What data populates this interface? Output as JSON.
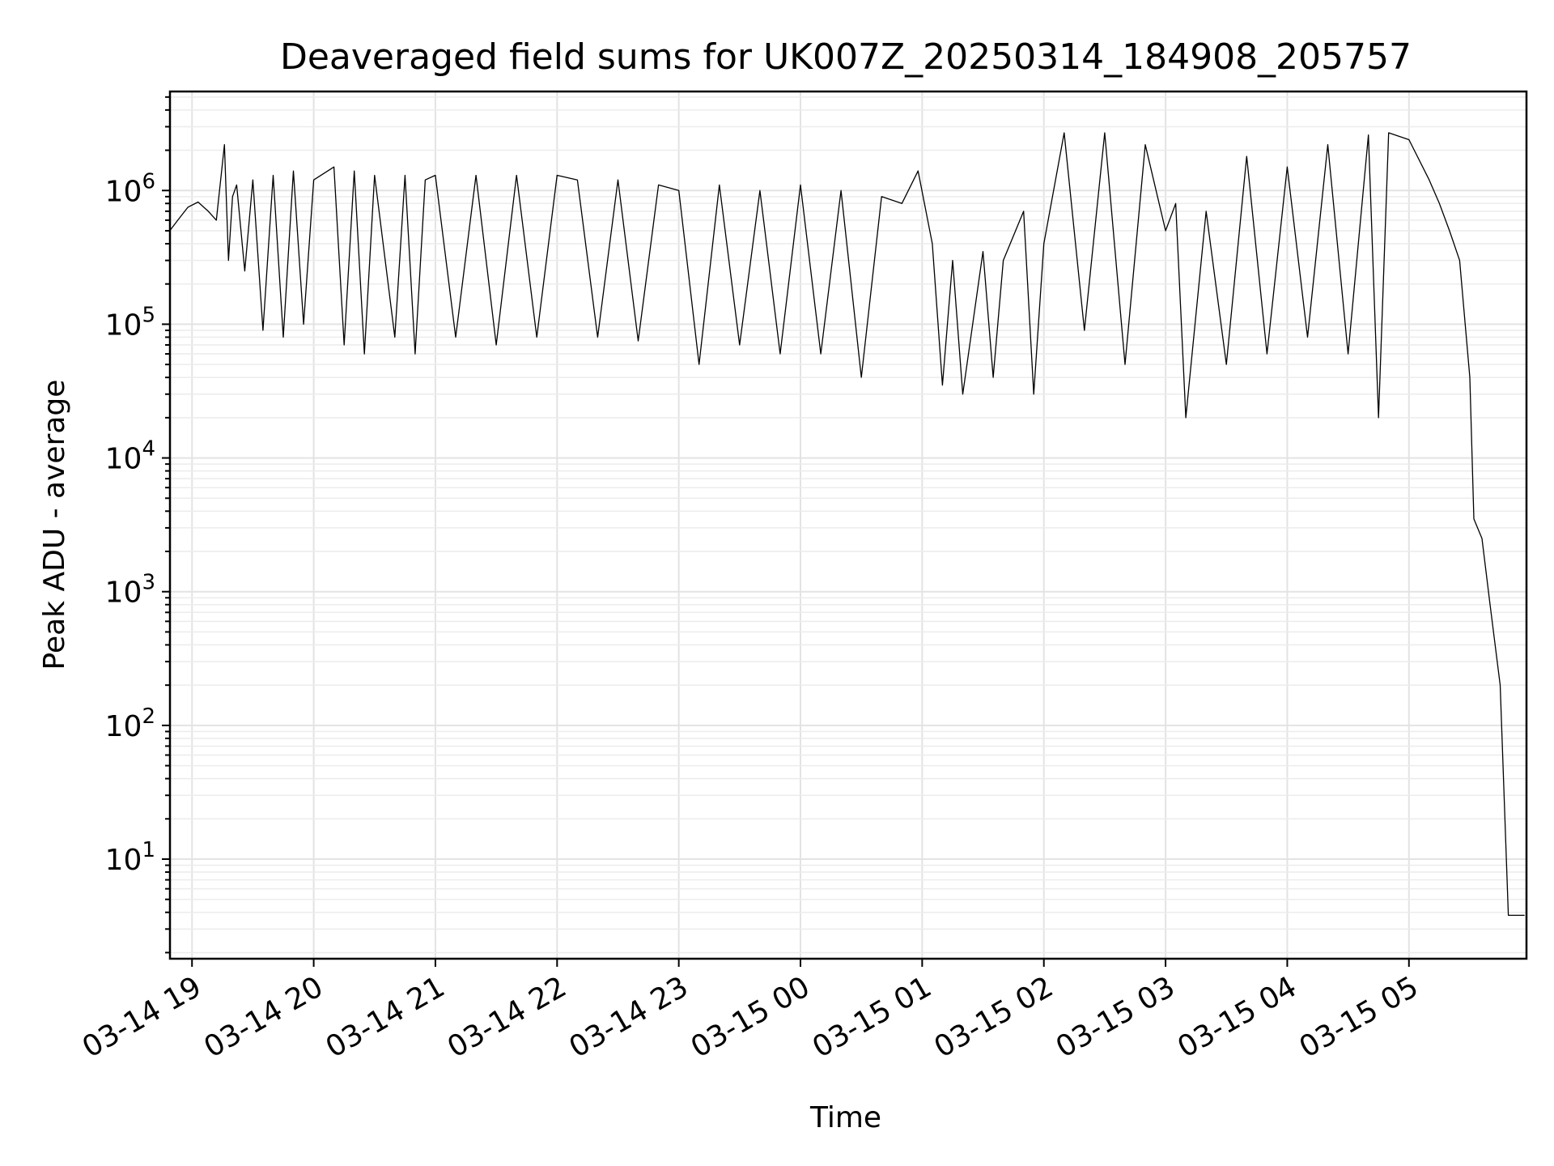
{
  "chart_data": {
    "type": "line",
    "title": "Deaveraged field sums for UK007Z_20250314_184908_205757",
    "xlabel": "Time",
    "ylabel": "Peak ADU - average",
    "yscale": "log",
    "ylim": [
      1.8,
      5500000
    ],
    "xlim": [
      "2025-03-14 18:49:08",
      "2025-03-15 05:57:57"
    ],
    "x_ticks": [
      "03-14 19",
      "03-14 20",
      "03-14 21",
      "03-14 22",
      "03-14 23",
      "03-15 00",
      "03-15 01",
      "03-15 02",
      "03-15 03",
      "03-15 04",
      "03-15 05"
    ],
    "x_tick_times": [
      "2025-03-14 19:00",
      "2025-03-14 20:00",
      "2025-03-14 21:00",
      "2025-03-14 22:00",
      "2025-03-14 23:00",
      "2025-03-15 00:00",
      "2025-03-15 01:00",
      "2025-03-15 02:00",
      "2025-03-15 03:00",
      "2025-03-15 04:00",
      "2025-03-15 05:00"
    ],
    "y_ticks": [
      {
        "value": 10,
        "base": "10",
        "exp": "1"
      },
      {
        "value": 100,
        "base": "10",
        "exp": "2"
      },
      {
        "value": 1000,
        "base": "10",
        "exp": "3"
      },
      {
        "value": 10000,
        "base": "10",
        "exp": "4"
      },
      {
        "value": 100000,
        "base": "10",
        "exp": "5"
      },
      {
        "value": 1000000,
        "base": "10",
        "exp": "6"
      }
    ],
    "grid": true,
    "line_color": "#000000",
    "series": [
      {
        "x": [
          "2025-03-14 18:49",
          "2025-03-14 18:53",
          "2025-03-14 18:58",
          "2025-03-14 19:03",
          "2025-03-14 19:08",
          "2025-03-14 19:12",
          "2025-03-14 19:16",
          "2025-03-14 19:18",
          "2025-03-14 19:20",
          "2025-03-14 19:22",
          "2025-03-14 19:26",
          "2025-03-14 19:30",
          "2025-03-14 19:35",
          "2025-03-14 19:40",
          "2025-03-14 19:45",
          "2025-03-14 19:50",
          "2025-03-14 19:55",
          "2025-03-14 20:00",
          "2025-03-14 20:10",
          "2025-03-14 20:15",
          "2025-03-14 20:20",
          "2025-03-14 20:25",
          "2025-03-14 20:30",
          "2025-03-14 20:40",
          "2025-03-14 20:45",
          "2025-03-14 20:50",
          "2025-03-14 20:55",
          "2025-03-14 21:00",
          "2025-03-14 21:10",
          "2025-03-14 21:20",
          "2025-03-14 21:30",
          "2025-03-14 21:40",
          "2025-03-14 21:50",
          "2025-03-14 22:00",
          "2025-03-14 22:10",
          "2025-03-14 22:20",
          "2025-03-14 22:30",
          "2025-03-14 22:40",
          "2025-03-14 22:50",
          "2025-03-14 23:00",
          "2025-03-14 23:10",
          "2025-03-14 23:20",
          "2025-03-14 23:30",
          "2025-03-14 23:40",
          "2025-03-14 23:50",
          "2025-03-15 00:00",
          "2025-03-15 00:10",
          "2025-03-15 00:20",
          "2025-03-15 00:30",
          "2025-03-15 00:40",
          "2025-03-15 00:50",
          "2025-03-15 00:58",
          "2025-03-15 01:05",
          "2025-03-15 01:10",
          "2025-03-15 01:15",
          "2025-03-15 01:20",
          "2025-03-15 01:30",
          "2025-03-15 01:35",
          "2025-03-15 01:40",
          "2025-03-15 01:50",
          "2025-03-15 01:55",
          "2025-03-15 02:00",
          "2025-03-15 02:10",
          "2025-03-15 02:20",
          "2025-03-15 02:30",
          "2025-03-15 02:40",
          "2025-03-15 02:50",
          "2025-03-15 03:00",
          "2025-03-15 03:05",
          "2025-03-15 03:10",
          "2025-03-15 03:20",
          "2025-03-15 03:30",
          "2025-03-15 03:40",
          "2025-03-15 03:50",
          "2025-03-15 04:00",
          "2025-03-15 04:10",
          "2025-03-15 04:20",
          "2025-03-15 04:30",
          "2025-03-15 04:40",
          "2025-03-15 04:45",
          "2025-03-15 04:50",
          "2025-03-15 05:00",
          "2025-03-15 05:10",
          "2025-03-15 05:15",
          "2025-03-15 05:20",
          "2025-03-15 05:25",
          "2025-03-15 05:30",
          "2025-03-15 05:32",
          "2025-03-15 05:36",
          "2025-03-15 05:40",
          "2025-03-15 05:45",
          "2025-03-15 05:49",
          "2025-03-15 05:52",
          "2025-03-15 05:57"
        ],
        "y": [
          500000,
          600000,
          750000,
          820000,
          700000,
          600000,
          2200000,
          300000,
          900000,
          1100000,
          250000,
          1200000,
          90000,
          1300000,
          80000,
          1400000,
          100000,
          1200000,
          1500000,
          70000,
          1400000,
          60000,
          1300000,
          80000,
          1300000,
          60000,
          1200000,
          1300000,
          80000,
          1300000,
          70000,
          1300000,
          80000,
          1300000,
          1200000,
          80000,
          1200000,
          75000,
          1100000,
          1000000,
          50000,
          1100000,
          70000,
          1000000,
          60000,
          1100000,
          60000,
          1000000,
          40000,
          900000,
          800000,
          1400000,
          400000,
          35000,
          300000,
          30000,
          350000,
          40000,
          300000,
          700000,
          30000,
          400000,
          2700000,
          90000,
          2700000,
          50000,
          2200000,
          500000,
          800000,
          20000,
          700000,
          50000,
          1800000,
          60000,
          1500000,
          80000,
          2200000,
          60000,
          2600000,
          20000,
          2700000,
          2400000,
          1200000,
          800000,
          500000,
          300000,
          40000,
          3500,
          2500,
          800,
          200,
          3.8,
          3.8,
          3.8
        ]
      }
    ]
  }
}
